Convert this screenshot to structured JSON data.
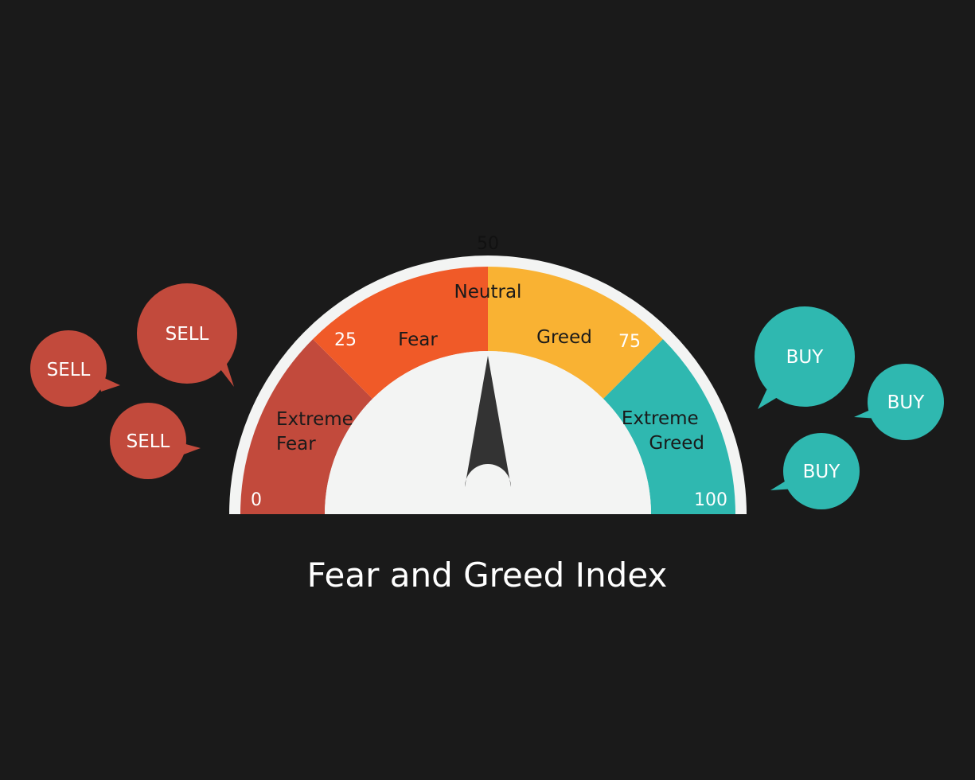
{
  "title": "Fear and Greed Index",
  "gauge": {
    "min": 0,
    "max": 100,
    "needle_value": 50,
    "ticks": [
      {
        "value": 0,
        "label": "0"
      },
      {
        "value": 25,
        "label": "25"
      },
      {
        "value": 50,
        "label": "50"
      },
      {
        "value": 75,
        "label": "75"
      },
      {
        "value": 100,
        "label": "100"
      }
    ],
    "zones": [
      {
        "from": 0,
        "to": 25,
        "color": "#c24a3c",
        "label_lines": [
          "Extreme",
          "Fear"
        ]
      },
      {
        "from": 25,
        "to": 50,
        "color": "#f05a28",
        "label_lines": [
          "Fear"
        ]
      },
      {
        "from": 50,
        "to": 75,
        "color": "#f9b233",
        "label_lines": [
          "Greed"
        ]
      },
      {
        "from": 75,
        "to": 100,
        "color": "#2fb8b0",
        "label_lines": [
          "Extreme",
          "Greed"
        ]
      }
    ],
    "center_label": "Neutral",
    "rim_color": "#f3f4f3",
    "needle_color": "#333333"
  },
  "sell_bubbles": {
    "label": "SELL",
    "color": "#c24a3c",
    "count": 3
  },
  "buy_bubbles": {
    "label": "BUY",
    "color": "#2fb8b0",
    "count": 3
  }
}
